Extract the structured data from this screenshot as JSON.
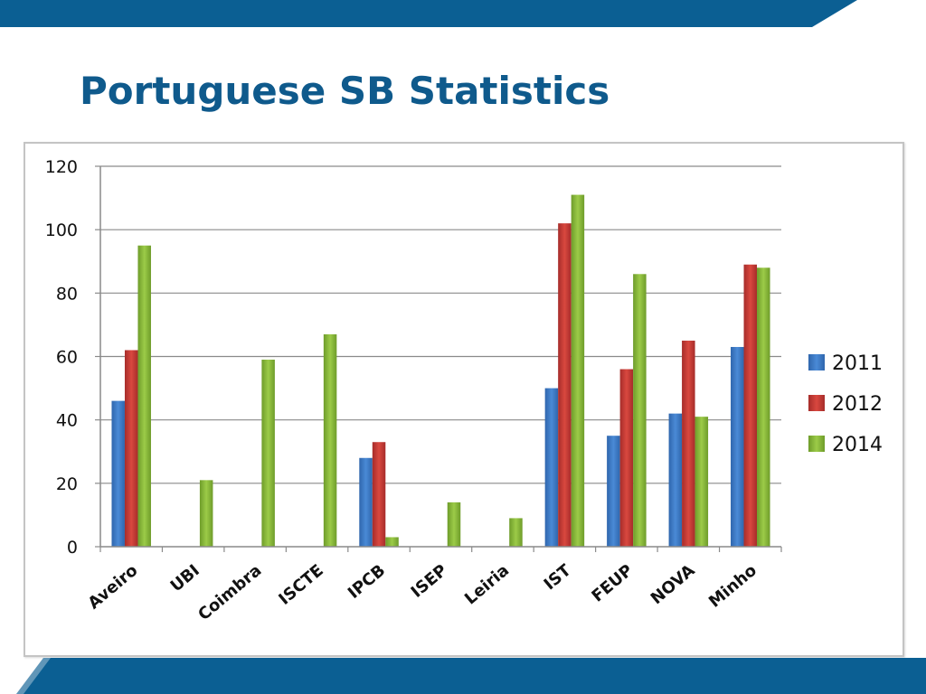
{
  "slide": {
    "title": "Portuguese SB Statistics"
  },
  "colors": {
    "band": "#0b5f93",
    "band_dark": "#0a4f7c",
    "title": "#0f5a8c"
  },
  "chart_data": {
    "type": "bar",
    "title": "",
    "xlabel": "",
    "ylabel": "",
    "ylim": [
      0,
      120
    ],
    "yticks": [
      0,
      20,
      40,
      60,
      80,
      100,
      120
    ],
    "grid": true,
    "legend": "right",
    "categories": [
      "Aveiro",
      "UBI",
      "Coimbra",
      "ISCTE",
      "IPCB",
      "ISEP",
      "Leiria",
      "IST",
      "FEUP",
      "NOVA",
      "Minho"
    ],
    "series": [
      {
        "name": "2011",
        "color": "#3d7ac8",
        "values": [
          46,
          null,
          null,
          null,
          28,
          null,
          null,
          50,
          35,
          42,
          63
        ]
      },
      {
        "name": "2012",
        "color": "#c83c38",
        "values": [
          62,
          null,
          null,
          null,
          33,
          null,
          null,
          102,
          56,
          65,
          89
        ]
      },
      {
        "name": "2014",
        "color": "#8cbd3a",
        "values": [
          95,
          21,
          59,
          67,
          3,
          14,
          9,
          111,
          86,
          41,
          88
        ]
      }
    ]
  }
}
